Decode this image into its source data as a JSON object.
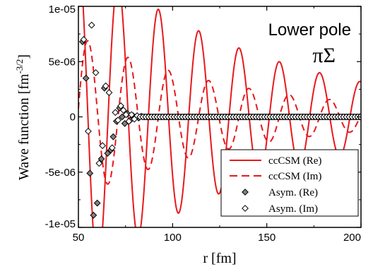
{
  "chart_data": {
    "type": "line",
    "xlabel": "r [fm]",
    "ylabel": "Wave function  [fm",
    "ylabel_exponent": "-3/2",
    "ylabel_close": "]",
    "xlim": [
      50,
      200
    ],
    "ylim": [
      -1e-05,
      1e-05
    ],
    "x_ticks": [
      50,
      100,
      150,
      200
    ],
    "x_tick_labels": [
      "50",
      "100",
      "150",
      "200"
    ],
    "y_ticks": [
      -1e-05,
      -5e-06,
      0,
      5e-06,
      1e-05
    ],
    "y_tick_labels": [
      "-1e-05",
      "-5e-06",
      "0",
      "5e-06",
      "1e-05"
    ],
    "grid": false,
    "legend_position": "bottom-right",
    "annotations": [
      "Lower pole",
      "πΣ"
    ],
    "colors": {
      "curve": "#e8191d",
      "marker_fill": "#808080",
      "marker_edge": "#000000"
    },
    "series": [
      {
        "name": "ccCSM (Re)",
        "style": "solid",
        "model": {
          "amp_at_100": 9e-06,
          "amp_decay_per_fm": 0.0104,
          "period_fm": 21.4,
          "phase_x": 92.5
        }
      },
      {
        "name": "ccCSM (Im)",
        "style": "dashed",
        "model": {
          "amp_at_100": 4.1e-06,
          "amp_decay_per_fm": 0.0115,
          "period_fm": 21.4,
          "phase_x": 97.8
        }
      },
      {
        "name": "Asym. (Re)",
        "style": "marker-filled",
        "points": [
          [
            52.2,
            6.8e-06
          ],
          [
            54.0,
            3.5e-06
          ],
          [
            56.1,
            -5.1e-06
          ],
          [
            58.0,
            -8.9e-06
          ],
          [
            60.0,
            -7.8e-06
          ],
          [
            62.2,
            -3.8e-06
          ],
          [
            63.8,
            2.6e-06
          ],
          [
            65.5,
            -3.3e-06
          ],
          [
            67.2,
            -3e-06
          ],
          [
            68.5,
            -1.8e-06
          ],
          [
            70.2,
            -4e-07
          ],
          [
            71.8,
            8e-07
          ],
          [
            73.2,
            0.0
          ],
          [
            74.6,
            -6e-07
          ],
          [
            76.0,
            3e-07
          ],
          [
            77.5,
            -3e-07
          ],
          [
            79.0,
            1e-07
          ],
          [
            80.5,
            0.0
          ],
          [
            82.0,
            -1e-07
          ],
          [
            83.5,
            5e-08
          ],
          [
            85.0,
            0.0
          ],
          [
            86.5,
            0.0
          ],
          [
            88.0,
            0.0
          ],
          [
            89.5,
            0.0
          ],
          [
            91.0,
            0.0
          ],
          [
            92.5,
            0.0
          ],
          [
            94.0,
            0.0
          ],
          [
            95.5,
            0.0
          ],
          [
            97.0,
            0.0
          ],
          [
            98.5,
            0.0
          ],
          [
            100.0,
            0.0
          ],
          [
            101.5,
            0.0
          ],
          [
            103.0,
            0.0
          ],
          [
            104.5,
            0.0
          ],
          [
            106.0,
            0.0
          ],
          [
            107.5,
            0.0
          ],
          [
            109.0,
            0.0
          ],
          [
            110.5,
            0.0
          ],
          [
            112.0,
            0.0
          ],
          [
            113.5,
            0.0
          ],
          [
            115.0,
            0.0
          ],
          [
            116.5,
            0.0
          ],
          [
            118.0,
            0.0
          ],
          [
            119.5,
            0.0
          ],
          [
            121.0,
            0.0
          ],
          [
            122.5,
            0.0
          ],
          [
            124.0,
            0.0
          ],
          [
            125.5,
            0.0
          ],
          [
            127.0,
            0.0
          ],
          [
            128.5,
            0.0
          ],
          [
            130.0,
            0.0
          ],
          [
            131.5,
            0.0
          ],
          [
            133.0,
            0.0
          ],
          [
            134.5,
            0.0
          ],
          [
            136.0,
            0.0
          ],
          [
            137.5,
            0.0
          ],
          [
            139.0,
            0.0
          ],
          [
            140.5,
            0.0
          ],
          [
            142.0,
            0.0
          ],
          [
            143.5,
            0.0
          ],
          [
            145.0,
            0.0
          ],
          [
            146.5,
            0.0
          ],
          [
            148.0,
            0.0
          ],
          [
            149.5,
            0.0
          ],
          [
            151.0,
            0.0
          ],
          [
            152.5,
            0.0
          ],
          [
            154.0,
            0.0
          ],
          [
            155.5,
            0.0
          ],
          [
            157.0,
            0.0
          ],
          [
            158.5,
            0.0
          ],
          [
            160.0,
            0.0
          ],
          [
            161.5,
            0.0
          ],
          [
            163.0,
            0.0
          ],
          [
            164.5,
            0.0
          ],
          [
            166.0,
            0.0
          ],
          [
            167.5,
            0.0
          ],
          [
            169.0,
            0.0
          ],
          [
            170.5,
            0.0
          ],
          [
            172.0,
            0.0
          ],
          [
            173.5,
            0.0
          ],
          [
            175.0,
            0.0
          ],
          [
            176.5,
            0.0
          ],
          [
            178.0,
            0.0
          ],
          [
            179.5,
            0.0
          ],
          [
            181.0,
            0.0
          ],
          [
            182.5,
            0.0
          ],
          [
            184.0,
            0.0
          ],
          [
            185.5,
            0.0
          ],
          [
            187.0,
            0.0
          ],
          [
            188.5,
            0.0
          ],
          [
            190.0,
            0.0
          ],
          [
            191.5,
            0.0
          ],
          [
            193.0,
            0.0
          ],
          [
            194.5,
            0.0
          ],
          [
            196.0,
            0.0
          ],
          [
            197.5,
            0.0
          ],
          [
            199.0,
            0.0
          ]
        ]
      },
      {
        "name": "Asym. (Im)",
        "style": "marker-open",
        "points": [
          [
            52.8,
            7e-06
          ],
          [
            55.2,
            -1.3e-06
          ],
          [
            57.0,
            8.3e-06
          ],
          [
            59.2,
            4e-06
          ],
          [
            61.0,
            -4.2e-06
          ],
          [
            62.8,
            -2.6e-06
          ],
          [
            64.5,
            2.8e-06
          ],
          [
            66.3,
            2.2e-06
          ],
          [
            67.9,
            -2.8e-06
          ],
          [
            69.6,
            4e-07
          ],
          [
            71.0,
            -3e-07
          ],
          [
            72.5,
            1e-06
          ],
          [
            73.9,
            6e-07
          ],
          [
            75.3,
            2e-07
          ],
          [
            76.8,
            -4e-07
          ],
          [
            78.2,
            2e-07
          ],
          [
            79.7,
            -2e-07
          ],
          [
            81.2,
            1e-07
          ],
          [
            82.7,
            0.0
          ],
          [
            84.2,
            0.0
          ],
          [
            85.7,
            0.0
          ],
          [
            87.2,
            0.0
          ],
          [
            88.7,
            0.0
          ],
          [
            90.2,
            0.0
          ],
          [
            91.7,
            0.0
          ],
          [
            93.2,
            0.0
          ],
          [
            94.7,
            0.0
          ],
          [
            96.2,
            0.0
          ],
          [
            97.7,
            0.0
          ],
          [
            99.2,
            0.0
          ],
          [
            100.7,
            0.0
          ],
          [
            102.2,
            0.0
          ],
          [
            103.7,
            0.0
          ],
          [
            105.2,
            0.0
          ],
          [
            106.7,
            0.0
          ],
          [
            108.2,
            0.0
          ],
          [
            109.7,
            0.0
          ],
          [
            111.2,
            0.0
          ],
          [
            112.7,
            0.0
          ],
          [
            114.2,
            0.0
          ],
          [
            115.7,
            0.0
          ],
          [
            117.2,
            0.0
          ],
          [
            118.7,
            0.0
          ],
          [
            120.2,
            0.0
          ],
          [
            121.7,
            0.0
          ],
          [
            123.2,
            0.0
          ],
          [
            124.7,
            0.0
          ],
          [
            126.2,
            0.0
          ],
          [
            127.7,
            0.0
          ],
          [
            129.2,
            0.0
          ],
          [
            130.7,
            0.0
          ],
          [
            132.2,
            0.0
          ],
          [
            133.7,
            0.0
          ],
          [
            135.2,
            0.0
          ],
          [
            136.7,
            0.0
          ],
          [
            138.2,
            0.0
          ],
          [
            139.7,
            0.0
          ],
          [
            141.2,
            0.0
          ],
          [
            142.7,
            0.0
          ],
          [
            144.2,
            0.0
          ],
          [
            145.7,
            0.0
          ],
          [
            147.2,
            0.0
          ],
          [
            148.7,
            0.0
          ],
          [
            150.2,
            0.0
          ],
          [
            151.7,
            0.0
          ],
          [
            153.2,
            0.0
          ],
          [
            154.7,
            0.0
          ],
          [
            156.2,
            0.0
          ],
          [
            157.7,
            0.0
          ],
          [
            159.2,
            0.0
          ],
          [
            160.7,
            0.0
          ],
          [
            162.2,
            0.0
          ],
          [
            163.7,
            0.0
          ],
          [
            165.2,
            0.0
          ],
          [
            166.7,
            0.0
          ],
          [
            168.2,
            0.0
          ],
          [
            169.7,
            0.0
          ],
          [
            171.2,
            0.0
          ],
          [
            172.7,
            0.0
          ],
          [
            174.2,
            0.0
          ],
          [
            175.7,
            0.0
          ],
          [
            177.2,
            0.0
          ],
          [
            178.7,
            0.0
          ],
          [
            180.2,
            0.0
          ],
          [
            181.7,
            0.0
          ],
          [
            183.2,
            0.0
          ],
          [
            184.7,
            0.0
          ],
          [
            186.2,
            0.0
          ],
          [
            187.7,
            0.0
          ],
          [
            189.2,
            0.0
          ],
          [
            190.7,
            0.0
          ],
          [
            192.2,
            0.0
          ],
          [
            193.7,
            0.0
          ],
          [
            195.2,
            0.0
          ],
          [
            196.7,
            0.0
          ],
          [
            198.2,
            0.0
          ],
          [
            199.6,
            0.0
          ]
        ]
      }
    ]
  }
}
